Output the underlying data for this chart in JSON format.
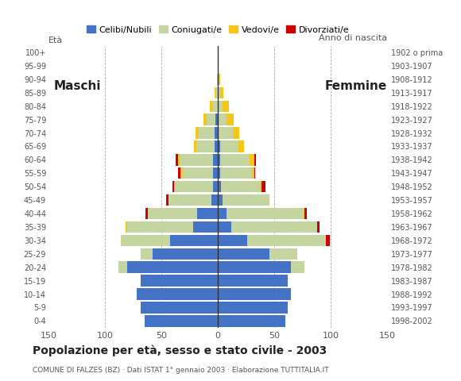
{
  "age_groups": [
    "0-4",
    "5-9",
    "10-14",
    "15-19",
    "20-24",
    "25-29",
    "30-34",
    "35-39",
    "40-44",
    "45-49",
    "50-54",
    "55-59",
    "60-64",
    "65-69",
    "70-74",
    "75-79",
    "80-84",
    "85-89",
    "90-94",
    "95-99",
    "100+"
  ],
  "birth_years": [
    "1998-2002",
    "1993-1997",
    "1988-1992",
    "1983-1987",
    "1978-1982",
    "1973-1977",
    "1968-1972",
    "1963-1967",
    "1958-1962",
    "1953-1957",
    "1948-1952",
    "1943-1947",
    "1938-1942",
    "1933-1937",
    "1928-1932",
    "1923-1927",
    "1918-1922",
    "1913-1917",
    "1908-1912",
    "1903-1907",
    "1902 o prima"
  ],
  "males": {
    "celibe": [
      65,
      68,
      72,
      68,
      80,
      58,
      42,
      22,
      18,
      6,
      4,
      4,
      4,
      3,
      3,
      2,
      0,
      0,
      0,
      0,
      0
    ],
    "coniugato": [
      0,
      0,
      0,
      0,
      8,
      10,
      44,
      58,
      44,
      38,
      34,
      28,
      30,
      16,
      14,
      8,
      5,
      2,
      1,
      0,
      0
    ],
    "vedovo": [
      0,
      0,
      0,
      0,
      0,
      0,
      0,
      2,
      0,
      0,
      1,
      1,
      1,
      2,
      3,
      3,
      2,
      1,
      0,
      0,
      0
    ],
    "divorziato": [
      0,
      0,
      0,
      0,
      0,
      0,
      0,
      0,
      2,
      2,
      1,
      2,
      2,
      0,
      0,
      0,
      0,
      0,
      0,
      0,
      0
    ]
  },
  "females": {
    "nubile": [
      60,
      62,
      65,
      62,
      65,
      46,
      26,
      12,
      8,
      4,
      3,
      2,
      2,
      2,
      1,
      0,
      0,
      0,
      0,
      0,
      0
    ],
    "coniugata": [
      0,
      0,
      0,
      0,
      12,
      24,
      70,
      76,
      68,
      42,
      34,
      28,
      26,
      16,
      12,
      8,
      4,
      2,
      1,
      0,
      0
    ],
    "vedova": [
      0,
      0,
      0,
      0,
      0,
      0,
      0,
      0,
      1,
      0,
      2,
      2,
      4,
      5,
      6,
      6,
      6,
      3,
      1,
      1,
      0
    ],
    "divorziata": [
      0,
      0,
      0,
      0,
      0,
      0,
      3,
      2,
      2,
      0,
      3,
      1,
      2,
      0,
      0,
      0,
      0,
      0,
      0,
      0,
      0
    ]
  },
  "colors": {
    "celibe": "#4472C4",
    "coniugato": "#C5D5A0",
    "vedovo": "#F5C518",
    "divorziato": "#CC0000"
  },
  "xlim": 150,
  "title": "Popolazione per età, sesso e stato civile - 2003",
  "subtitle": "COMUNE DI FALZES (BZ) · Dati ISTAT 1° gennaio 2003 · Elaborazione TUTTITALIA.IT",
  "xlabel_left": "Maschi",
  "xlabel_right": "Femmine",
  "ylabel": "Età",
  "ylabel_right": "Anno di nascita",
  "legend_labels": [
    "Celibi/Nubili",
    "Coniugati/e",
    "Vedovi/e",
    "Divorziati/e"
  ],
  "background_color": "#FFFFFF"
}
